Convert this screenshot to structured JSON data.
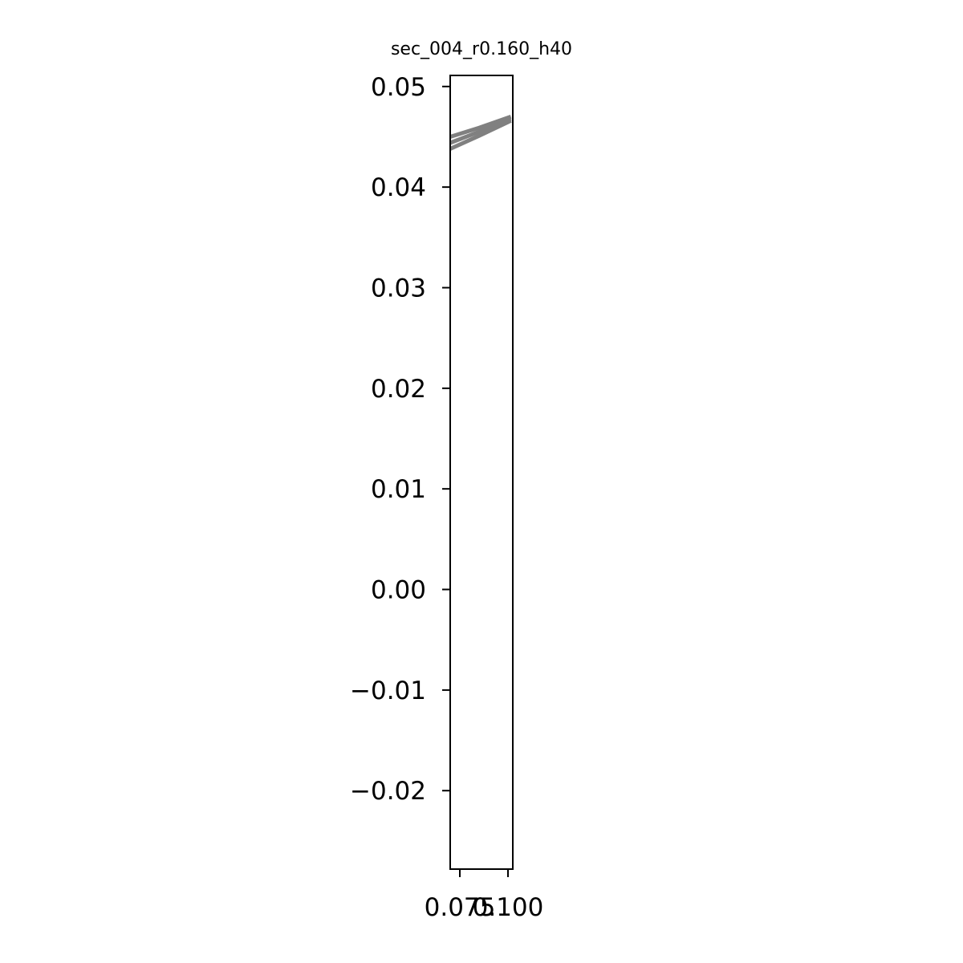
{
  "chart_data": {
    "type": "line",
    "title": "sec_004_r0.160_h40",
    "xlabel": "",
    "ylabel": "",
    "xlim": [
      0.07,
      0.1025
    ],
    "ylim": [
      -0.0278,
      0.0511
    ],
    "x_ticks": [
      {
        "value": 0.075,
        "label": "0.075"
      },
      {
        "value": 0.1,
        "label": "0.100"
      }
    ],
    "y_ticks": [
      {
        "value": 0.05,
        "label": "0.05"
      },
      {
        "value": 0.04,
        "label": "0.04"
      },
      {
        "value": 0.03,
        "label": "0.03"
      },
      {
        "value": 0.02,
        "label": "0.02"
      },
      {
        "value": 0.01,
        "label": "0.01"
      },
      {
        "value": 0.0,
        "label": "0.00"
      },
      {
        "value": -0.01,
        "label": "−0.01"
      },
      {
        "value": -0.02,
        "label": "−0.02"
      }
    ],
    "grid": false,
    "line_color": "#808080",
    "series": [
      {
        "x": [
          0.07,
          0.085,
          0.1015
        ],
        "y": [
          0.045,
          0.0459,
          0.047
        ]
      },
      {
        "x": [
          0.07,
          0.085,
          0.1015
        ],
        "y": [
          0.0444,
          0.0455,
          0.0468
        ]
      },
      {
        "x": [
          0.07,
          0.085,
          0.1015
        ],
        "y": [
          0.0438,
          0.0451,
          0.0466
        ]
      }
    ]
  }
}
